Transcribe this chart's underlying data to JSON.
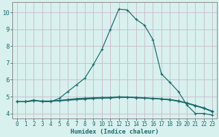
{
  "title": "",
  "xlabel": "Humidex (Indice chaleur)",
  "ylabel": "",
  "bg_color": "#d8f0ee",
  "grid_color": "#c8b8c8",
  "line_color": "#1a6b6b",
  "xlim": [
    -0.5,
    23.5
  ],
  "ylim": [
    3.7,
    10.6
  ],
  "xticks": [
    0,
    1,
    2,
    3,
    4,
    5,
    6,
    7,
    8,
    9,
    10,
    11,
    12,
    13,
    14,
    15,
    16,
    17,
    18,
    19,
    20,
    21,
    22,
    23
  ],
  "yticks": [
    4,
    5,
    6,
    7,
    8,
    9,
    10
  ],
  "curves": [
    {
      "x": [
        0,
        1,
        2,
        3,
        4,
        5,
        6,
        7,
        8,
        9,
        10,
        11,
        12,
        13,
        14,
        15,
        16,
        17,
        18,
        19,
        20,
        21,
        22,
        23
      ],
      "y": [
        4.7,
        4.7,
        4.8,
        4.7,
        4.7,
        4.9,
        5.3,
        5.7,
        6.1,
        6.9,
        7.8,
        9.0,
        10.2,
        10.15,
        9.6,
        9.25,
        8.4,
        6.35,
        5.85,
        5.3,
        4.5,
        4.0,
        4.0,
        3.9
      ]
    },
    {
      "x": [
        0,
        1,
        2,
        3,
        4,
        5,
        6,
        7,
        8,
        9,
        10,
        11,
        12,
        13,
        14,
        15,
        16,
        17,
        18,
        19,
        20,
        21,
        22,
        23
      ],
      "y": [
        4.7,
        4.7,
        4.75,
        4.72,
        4.72,
        4.75,
        4.78,
        4.82,
        4.85,
        4.88,
        4.9,
        4.92,
        4.95,
        4.95,
        4.93,
        4.9,
        4.88,
        4.85,
        4.8,
        4.72,
        4.6,
        4.45,
        4.3,
        4.1
      ]
    },
    {
      "x": [
        0,
        1,
        2,
        3,
        4,
        5,
        6,
        7,
        8,
        9,
        10,
        11,
        12,
        13,
        14,
        15,
        16,
        17,
        18,
        19,
        20,
        21,
        22,
        23
      ],
      "y": [
        4.7,
        4.7,
        4.75,
        4.73,
        4.73,
        4.76,
        4.8,
        4.85,
        4.88,
        4.9,
        4.92,
        4.93,
        4.96,
        4.96,
        4.94,
        4.92,
        4.89,
        4.86,
        4.82,
        4.74,
        4.62,
        4.47,
        4.32,
        4.12
      ]
    },
    {
      "x": [
        0,
        1,
        2,
        3,
        4,
        5,
        6,
        7,
        8,
        9,
        10,
        11,
        12,
        13,
        14,
        15,
        16,
        17,
        18,
        19,
        20,
        21,
        22,
        23
      ],
      "y": [
        4.7,
        4.7,
        4.76,
        4.74,
        4.74,
        4.78,
        4.83,
        4.88,
        4.91,
        4.93,
        4.95,
        4.96,
        4.99,
        4.98,
        4.96,
        4.93,
        4.9,
        4.87,
        4.83,
        4.75,
        4.63,
        4.48,
        4.33,
        4.13
      ]
    }
  ]
}
